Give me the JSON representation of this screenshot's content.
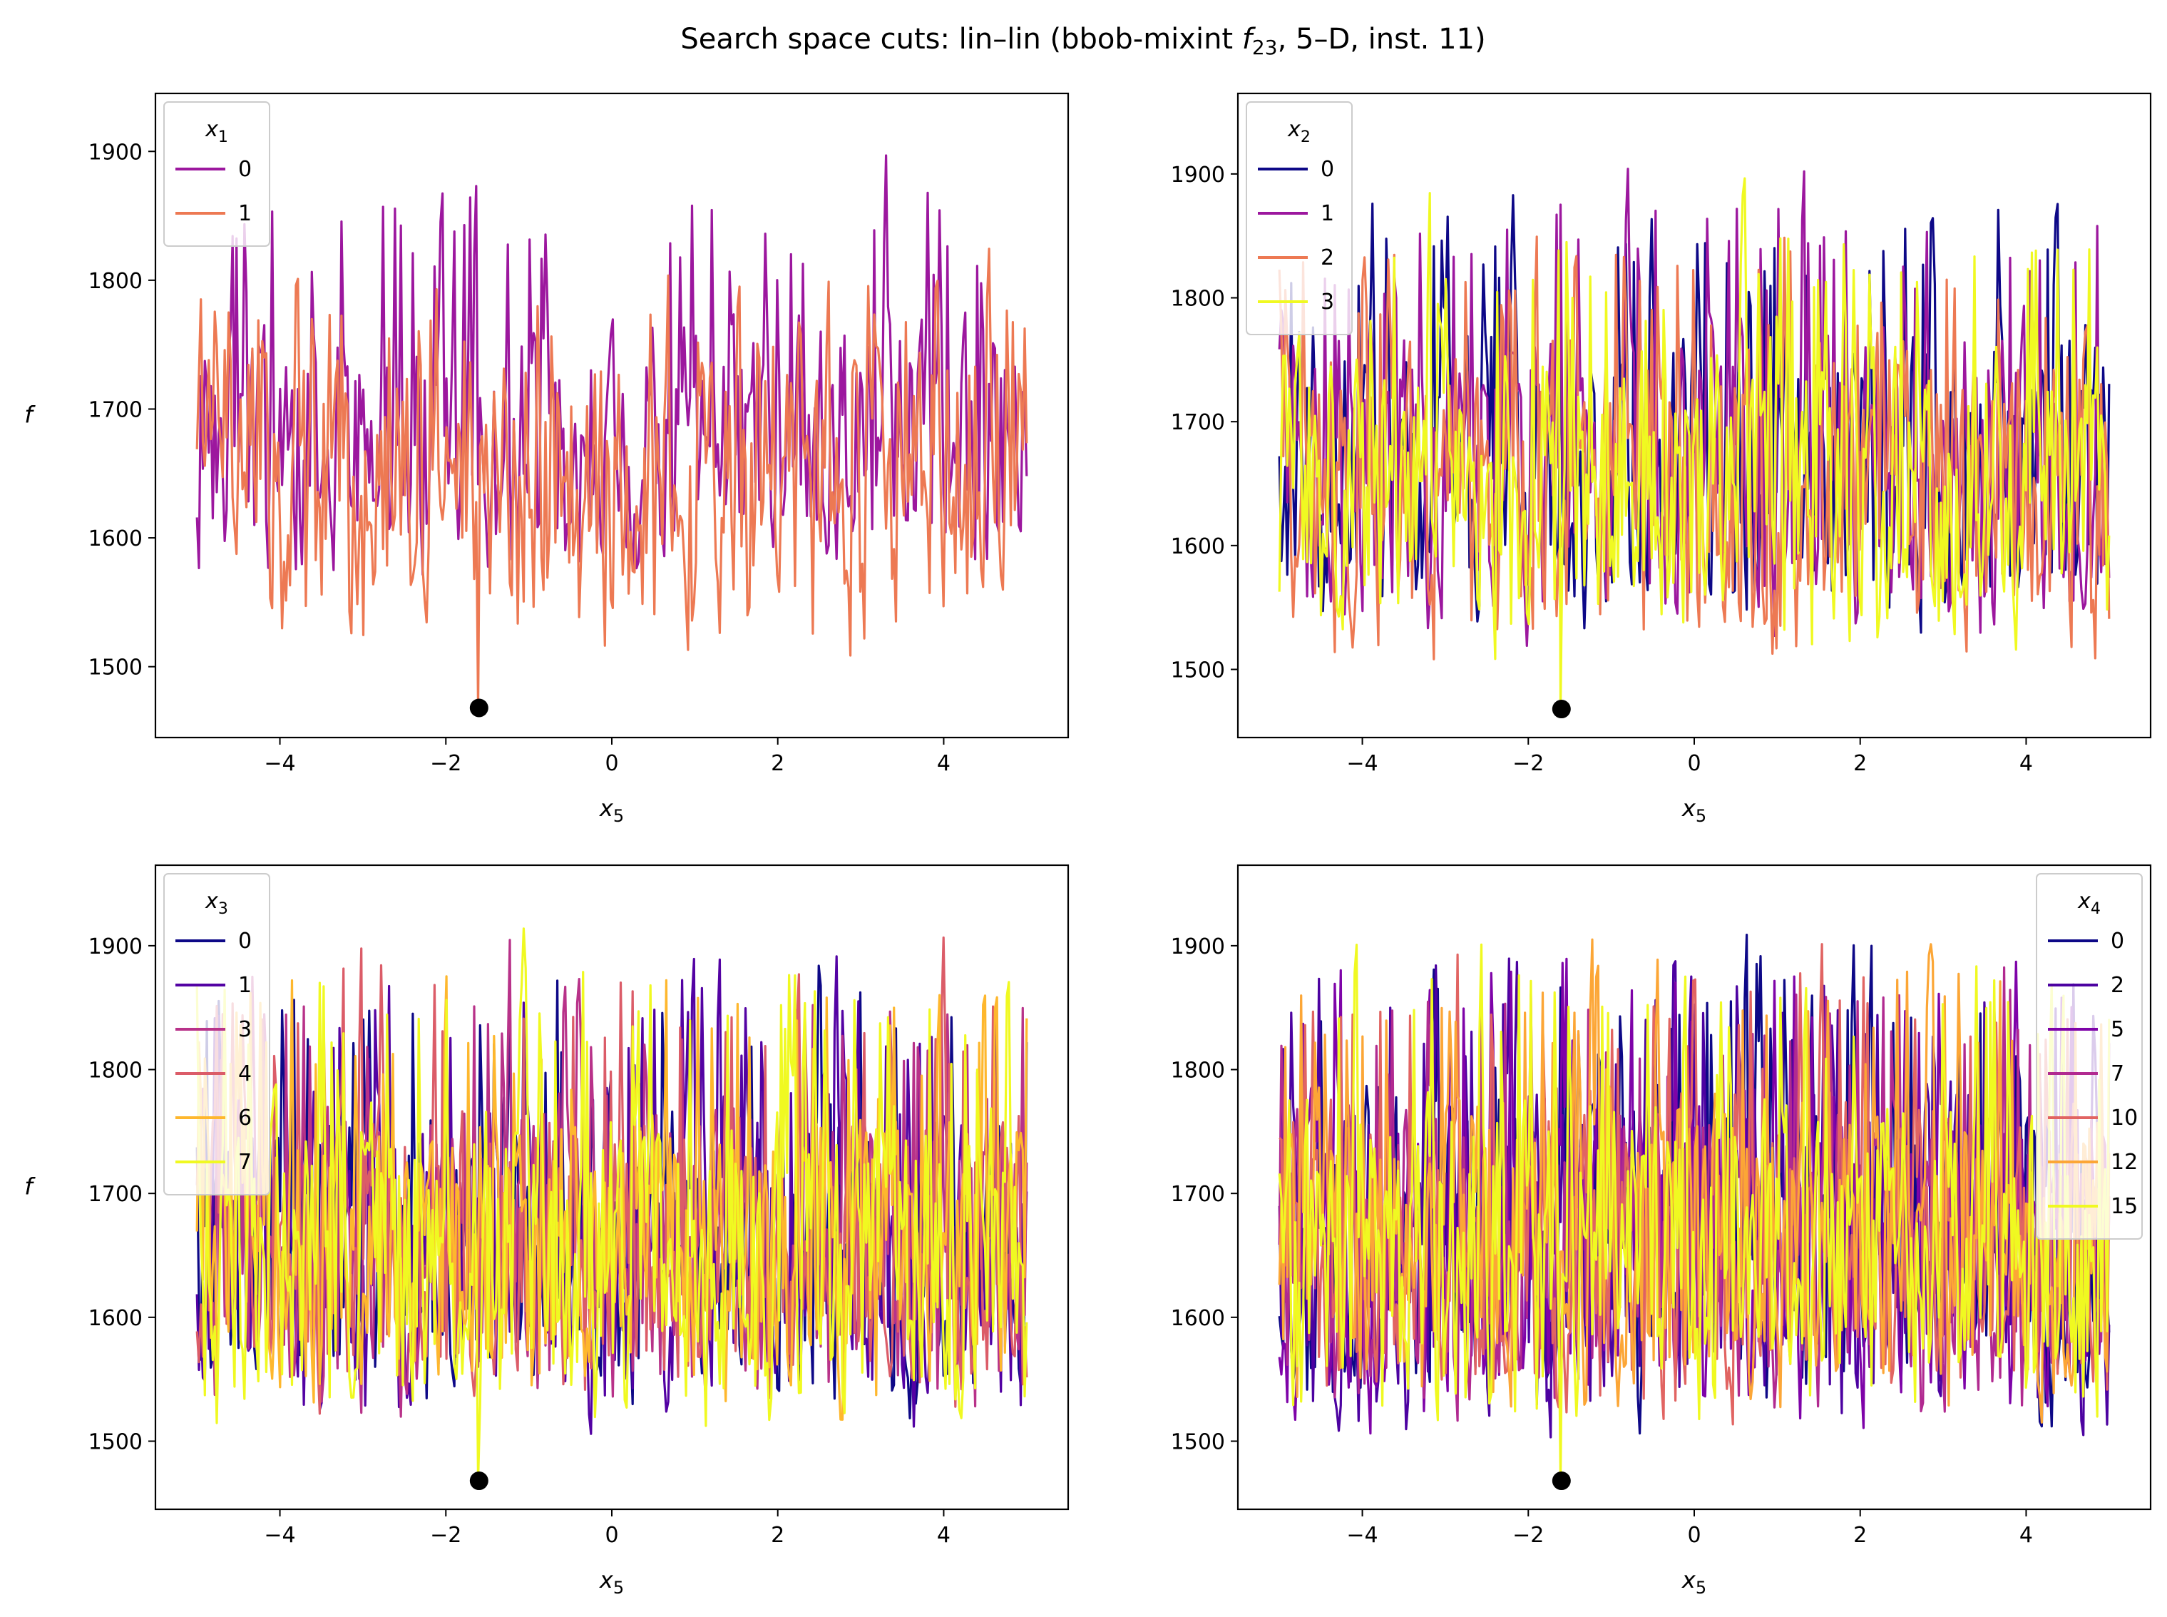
{
  "figure": {
    "title_prefix": "Search space cuts: lin–lin (bbob-mixint ",
    "title_f": "f",
    "title_f_sub": "23",
    "title_suffix": ", 5–D, inst. 11)"
  },
  "chart_data": [
    {
      "type": "line",
      "xlabel": "x",
      "xlabel_sub": "5",
      "ylabel": "f",
      "xlim": [
        -5.5,
        5.5
      ],
      "ylim": [
        1445,
        1945
      ],
      "xticks": [
        -4,
        -2,
        0,
        2,
        4
      ],
      "xtick_labels": [
        "−4",
        "−2",
        "0",
        "2",
        "4"
      ],
      "yticks": [
        1500,
        1600,
        1700,
        1800,
        1900
      ],
      "ytick_labels": [
        "1500",
        "1600",
        "1700",
        "1800",
        "1900"
      ],
      "grid": false,
      "legend": {
        "title": "x",
        "title_sub": "1",
        "placement": "top-left"
      },
      "series": [
        {
          "name": "0",
          "color": "#9c179e",
          "x_range": [
            -5,
            5
          ],
          "min": 1555,
          "max": 1920,
          "center": 1670,
          "seed": 11
        },
        {
          "name": "1",
          "color": "#ed7953",
          "x_range": [
            -5,
            5
          ],
          "min": 1485,
          "max": 1840,
          "center": 1650,
          "seed": 12
        }
      ],
      "optimum": {
        "x": -1.6,
        "y": 1468
      }
    },
    {
      "type": "line",
      "xlabel": "x",
      "xlabel_sub": "5",
      "ylabel": "f",
      "xlim": [
        -5.5,
        5.5
      ],
      "ylim": [
        1445,
        1965
      ],
      "xticks": [
        -4,
        -2,
        0,
        2,
        4
      ],
      "xtick_labels": [
        "−4",
        "−2",
        "0",
        "2",
        "4"
      ],
      "yticks": [
        1500,
        1600,
        1700,
        1800,
        1900
      ],
      "ytick_labels": [
        "1500",
        "1600",
        "1700",
        "1800",
        "1900"
      ],
      "grid": false,
      "legend": {
        "title": "x",
        "title_sub": "2",
        "placement": "top-left"
      },
      "series": [
        {
          "name": "0",
          "color": "#0d0887",
          "x_range": [
            -5,
            5
          ],
          "min": 1505,
          "max": 1928,
          "center": 1670,
          "seed": 21
        },
        {
          "name": "1",
          "color": "#9c179e",
          "x_range": [
            -5,
            5
          ],
          "min": 1495,
          "max": 1948,
          "center": 1665,
          "seed": 22
        },
        {
          "name": "2",
          "color": "#ed7953",
          "x_range": [
            -5,
            5
          ],
          "min": 1485,
          "max": 1905,
          "center": 1655,
          "seed": 23
        },
        {
          "name": "3",
          "color": "#f0f921",
          "x_range": [
            -5,
            5
          ],
          "min": 1485,
          "max": 1910,
          "center": 1650,
          "seed": 24
        }
      ],
      "optimum": {
        "x": -1.6,
        "y": 1468
      }
    },
    {
      "type": "line",
      "xlabel": "x",
      "xlabel_sub": "5",
      "ylabel": "f",
      "xlim": [
        -5.5,
        5.5
      ],
      "ylim": [
        1445,
        1965
      ],
      "xticks": [
        -4,
        -2,
        0,
        2,
        4
      ],
      "xtick_labels": [
        "−4",
        "−2",
        "0",
        "2",
        "4"
      ],
      "yticks": [
        1500,
        1600,
        1700,
        1800,
        1900
      ],
      "ytick_labels": [
        "1500",
        "1600",
        "1700",
        "1800",
        "1900"
      ],
      "grid": false,
      "legend": {
        "title": "x",
        "title_sub": "3",
        "placement": "top-left"
      },
      "series": [
        {
          "name": "0",
          "color": "#0d0887",
          "x_range": [
            -5,
            5
          ],
          "min": 1505,
          "max": 1930,
          "center": 1670,
          "seed": 31
        },
        {
          "name": "1",
          "color": "#5302a3",
          "x_range": [
            -5,
            5
          ],
          "min": 1485,
          "max": 1925,
          "center": 1665,
          "seed": 32
        },
        {
          "name": "3",
          "color": "#b83289",
          "x_range": [
            -5,
            5
          ],
          "min": 1500,
          "max": 1935,
          "center": 1665,
          "seed": 33
        },
        {
          "name": "4",
          "color": "#db5c68",
          "x_range": [
            -5,
            5
          ],
          "min": 1505,
          "max": 1930,
          "center": 1660,
          "seed": 34
        },
        {
          "name": "6",
          "color": "#feb72d",
          "x_range": [
            -5,
            5
          ],
          "min": 1500,
          "max": 1925,
          "center": 1655,
          "seed": 35
        },
        {
          "name": "7",
          "color": "#f0f921",
          "x_range": [
            -5,
            5
          ],
          "min": 1485,
          "max": 1938,
          "center": 1655,
          "seed": 36
        }
      ],
      "optimum": {
        "x": -1.6,
        "y": 1468
      }
    },
    {
      "type": "line",
      "xlabel": "x",
      "xlabel_sub": "5",
      "ylabel": "f",
      "xlim": [
        -5.5,
        5.5
      ],
      "ylim": [
        1445,
        1965
      ],
      "xticks": [
        -4,
        -2,
        0,
        2,
        4
      ],
      "xtick_labels": [
        "−4",
        "−2",
        "0",
        "2",
        "4"
      ],
      "yticks": [
        1500,
        1600,
        1700,
        1800,
        1900
      ],
      "ytick_labels": [
        "1500",
        "1600",
        "1700",
        "1800",
        "1900"
      ],
      "grid": false,
      "legend": {
        "title": "x",
        "title_sub": "4",
        "placement": "top-right"
      },
      "series": [
        {
          "name": "0",
          "color": "#0d0887",
          "x_range": [
            -5,
            5
          ],
          "min": 1490,
          "max": 1940,
          "center": 1670,
          "seed": 41
        },
        {
          "name": "2",
          "color": "#4c02a1",
          "x_range": [
            -5,
            5
          ],
          "min": 1485,
          "max": 1942,
          "center": 1668,
          "seed": 42
        },
        {
          "name": "5",
          "color": "#7e03a8",
          "x_range": [
            -5,
            5
          ],
          "min": 1490,
          "max": 1940,
          "center": 1665,
          "seed": 43
        },
        {
          "name": "7",
          "color": "#b12a90",
          "x_range": [
            -5,
            5
          ],
          "min": 1495,
          "max": 1935,
          "center": 1665,
          "seed": 44
        },
        {
          "name": "10",
          "color": "#e16462",
          "x_range": [
            -5,
            5
          ],
          "min": 1495,
          "max": 1938,
          "center": 1662,
          "seed": 45
        },
        {
          "name": "12",
          "color": "#fca636",
          "x_range": [
            -5,
            5
          ],
          "min": 1495,
          "max": 1935,
          "center": 1660,
          "seed": 46
        },
        {
          "name": "15",
          "color": "#f0f921",
          "x_range": [
            -5,
            5
          ],
          "min": 1485,
          "max": 1935,
          "center": 1660,
          "seed": 47
        }
      ],
      "optimum": {
        "x": -1.6,
        "y": 1468
      }
    }
  ]
}
